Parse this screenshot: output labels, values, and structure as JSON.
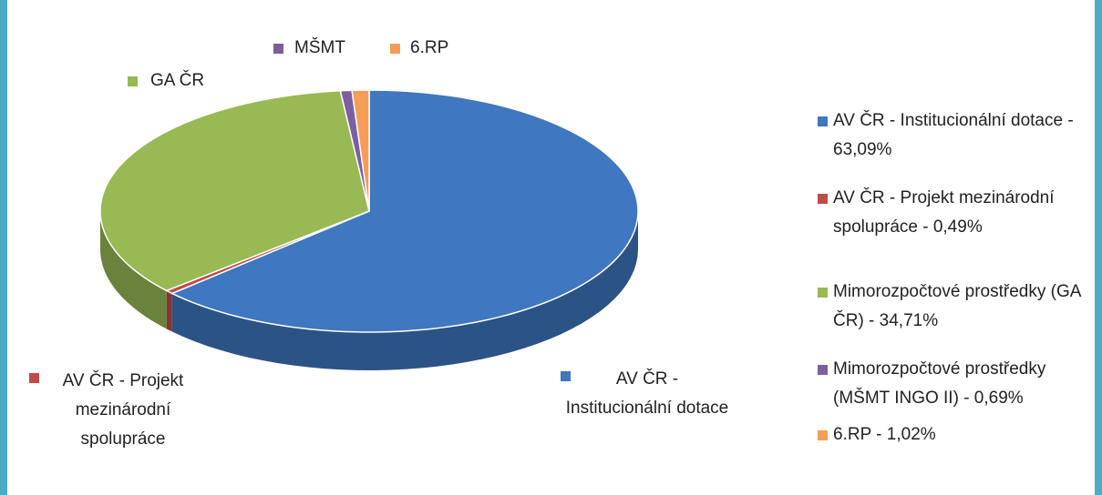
{
  "chart_data": {
    "type": "pie",
    "categories": [
      "AV ČR - Institucionální dotace",
      "AV ČR - Projekt mezinárodní spolupráce",
      "GA ČR",
      "MŠMT",
      "6.RP"
    ],
    "legend_labels": [
      "AV ČR - Institucionální dotace - 63,09%",
      "AV ČR - Projekt mezinárodní spolupráce - 0,49%",
      "Mimorozpočtové prostředky (GA ČR) - 34,71%",
      "Mimorozpočtové prostředky (MŠMT INGO II) - 0,69%",
      "6.RP - 1,02%"
    ],
    "values": [
      63.09,
      0.49,
      34.71,
      0.69,
      1.02
    ],
    "colors": [
      "#3f77c0",
      "#be4b48",
      "#98b954",
      "#7d5fa0",
      "#f59d56"
    ],
    "legend": "right"
  }
}
